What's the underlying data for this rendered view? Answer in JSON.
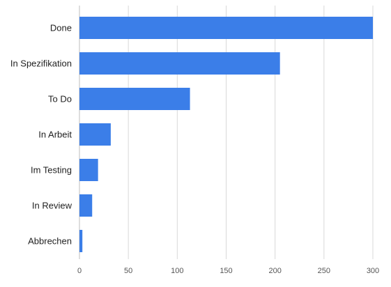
{
  "chart_data": {
    "type": "bar",
    "orientation": "horizontal",
    "categories": [
      "Done",
      "In Spezifikation",
      "To Do",
      "In Arbeit",
      "Im Testing",
      "In Review",
      "Abbrechen"
    ],
    "values": [
      300,
      205,
      113,
      32,
      19,
      13,
      3
    ],
    "xlim": [
      0,
      300
    ],
    "xticks": [
      0,
      50,
      100,
      150,
      200,
      250,
      300
    ],
    "title": "",
    "xlabel": "",
    "ylabel": "",
    "grid": "vertical",
    "legend": "none",
    "bar_color": "#3b7ee8",
    "grid_color": "#d9d9d9"
  }
}
